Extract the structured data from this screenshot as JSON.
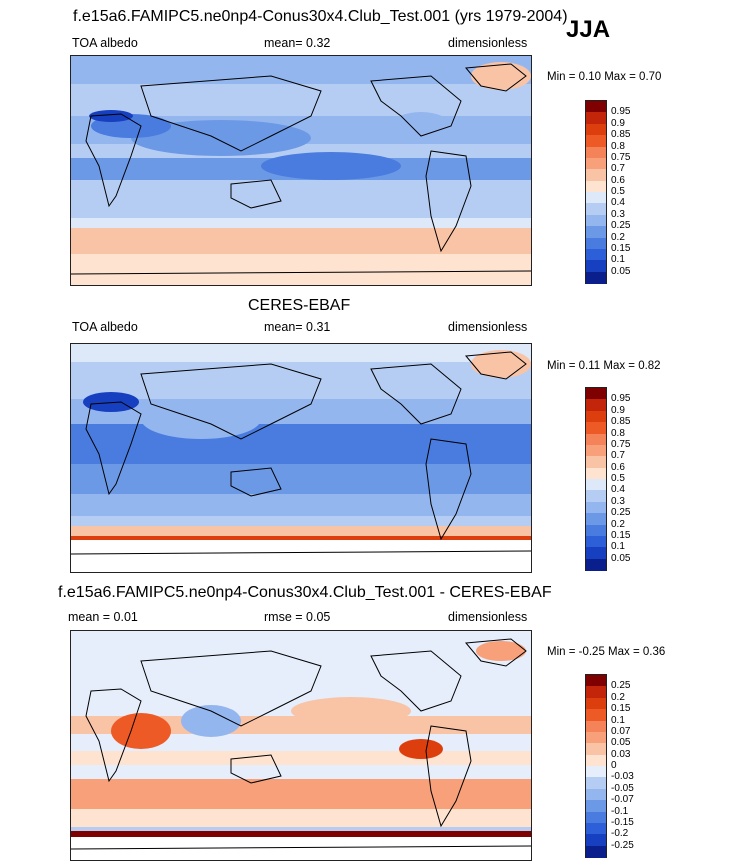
{
  "season": "JJA",
  "colorbars": {
    "abs": {
      "labels": [
        "0.95",
        "0.9",
        "0.85",
        "0.8",
        "0.75",
        "0.7",
        "0.6",
        "0.5",
        "0.4",
        "0.3",
        "0.25",
        "0.2",
        "0.15",
        "0.1",
        "0.05"
      ],
      "colors": [
        "#7f0000",
        "#c2250a",
        "#dd3e0e",
        "#ed5a26",
        "#f5835a",
        "#f7a07a",
        "#f9c3a6",
        "#fde3d0",
        "#dde8f9",
        "#b6cdf3",
        "#94b6ef",
        "#6c99e6",
        "#4a7ce0",
        "#2c5fd8",
        "#1740c0",
        "#0a1f8c"
      ]
    },
    "diff": {
      "labels": [
        "0.25",
        "0.2",
        "0.15",
        "0.1",
        "0.07",
        "0.05",
        "0.03",
        "0",
        "-0.03",
        "-0.05",
        "-0.07",
        "-0.1",
        "-0.15",
        "-0.2",
        "-0.25"
      ],
      "colors": [
        "#7f0000",
        "#c2250a",
        "#dd3e0e",
        "#ed5a26",
        "#f5835a",
        "#f7a07a",
        "#f9c3a6",
        "#fde3d0",
        "#e6eefb",
        "#b6cdf3",
        "#94b6ef",
        "#6c99e6",
        "#4a7ce0",
        "#2c5fd8",
        "#1740c0",
        "#0a1f8c"
      ]
    }
  },
  "panels": [
    {
      "title": "f.e15a6.FAMIPC5.ne0np4-Conus30x4.Club_Test.001 (yrs 1979-2004)",
      "left_label": "TOA albedo",
      "mid_label": "mean=  0.32",
      "right_label": "dimensionless",
      "minmax": "Min =  0.10 Max =  0.70"
    },
    {
      "title": "CERES-EBAF",
      "left_label": "TOA albedo",
      "mid_label": "mean=  0.31",
      "right_label": "dimensionless",
      "minmax": "Min =  0.11 Max =  0.82"
    },
    {
      "title": "f.e15a6.FAMIPC5.ne0np4-Conus30x4.Club_Test.001 - CERES-EBAF",
      "left_label": "mean =  0.01",
      "mid_label": "rmse =  0.05",
      "right_label": "dimensionless",
      "minmax": "Min =  -0.25 Max =  0.36"
    }
  ],
  "chart_data": [
    {
      "type": "heatmap",
      "title": "f.e15a6.FAMIPC5.ne0np4-Conus30x4.Club_Test.001 (yrs 1979-2004)",
      "variable": "TOA albedo",
      "units": "dimensionless",
      "mean": 0.32,
      "min": 0.1,
      "max": 0.7,
      "levels": [
        0.05,
        0.1,
        0.15,
        0.2,
        0.25,
        0.3,
        0.4,
        0.5,
        0.6,
        0.7,
        0.75,
        0.8,
        0.85,
        0.9,
        0.95
      ]
    },
    {
      "type": "heatmap",
      "title": "CERES-EBAF",
      "variable": "TOA albedo",
      "units": "dimensionless",
      "mean": 0.31,
      "min": 0.11,
      "max": 0.82,
      "levels": [
        0.05,
        0.1,
        0.15,
        0.2,
        0.25,
        0.3,
        0.4,
        0.5,
        0.6,
        0.7,
        0.75,
        0.8,
        0.85,
        0.9,
        0.95
      ]
    },
    {
      "type": "heatmap",
      "title": "f.e15a6.FAMIPC5.ne0np4-Conus30x4.Club_Test.001 - CERES-EBAF",
      "units": "dimensionless",
      "mean": 0.01,
      "rmse": 0.05,
      "min": -0.25,
      "max": 0.36,
      "levels": [
        -0.25,
        -0.2,
        -0.15,
        -0.1,
        -0.07,
        -0.05,
        -0.03,
        0,
        0.03,
        0.05,
        0.07,
        0.1,
        0.15,
        0.2,
        0.25
      ]
    }
  ]
}
